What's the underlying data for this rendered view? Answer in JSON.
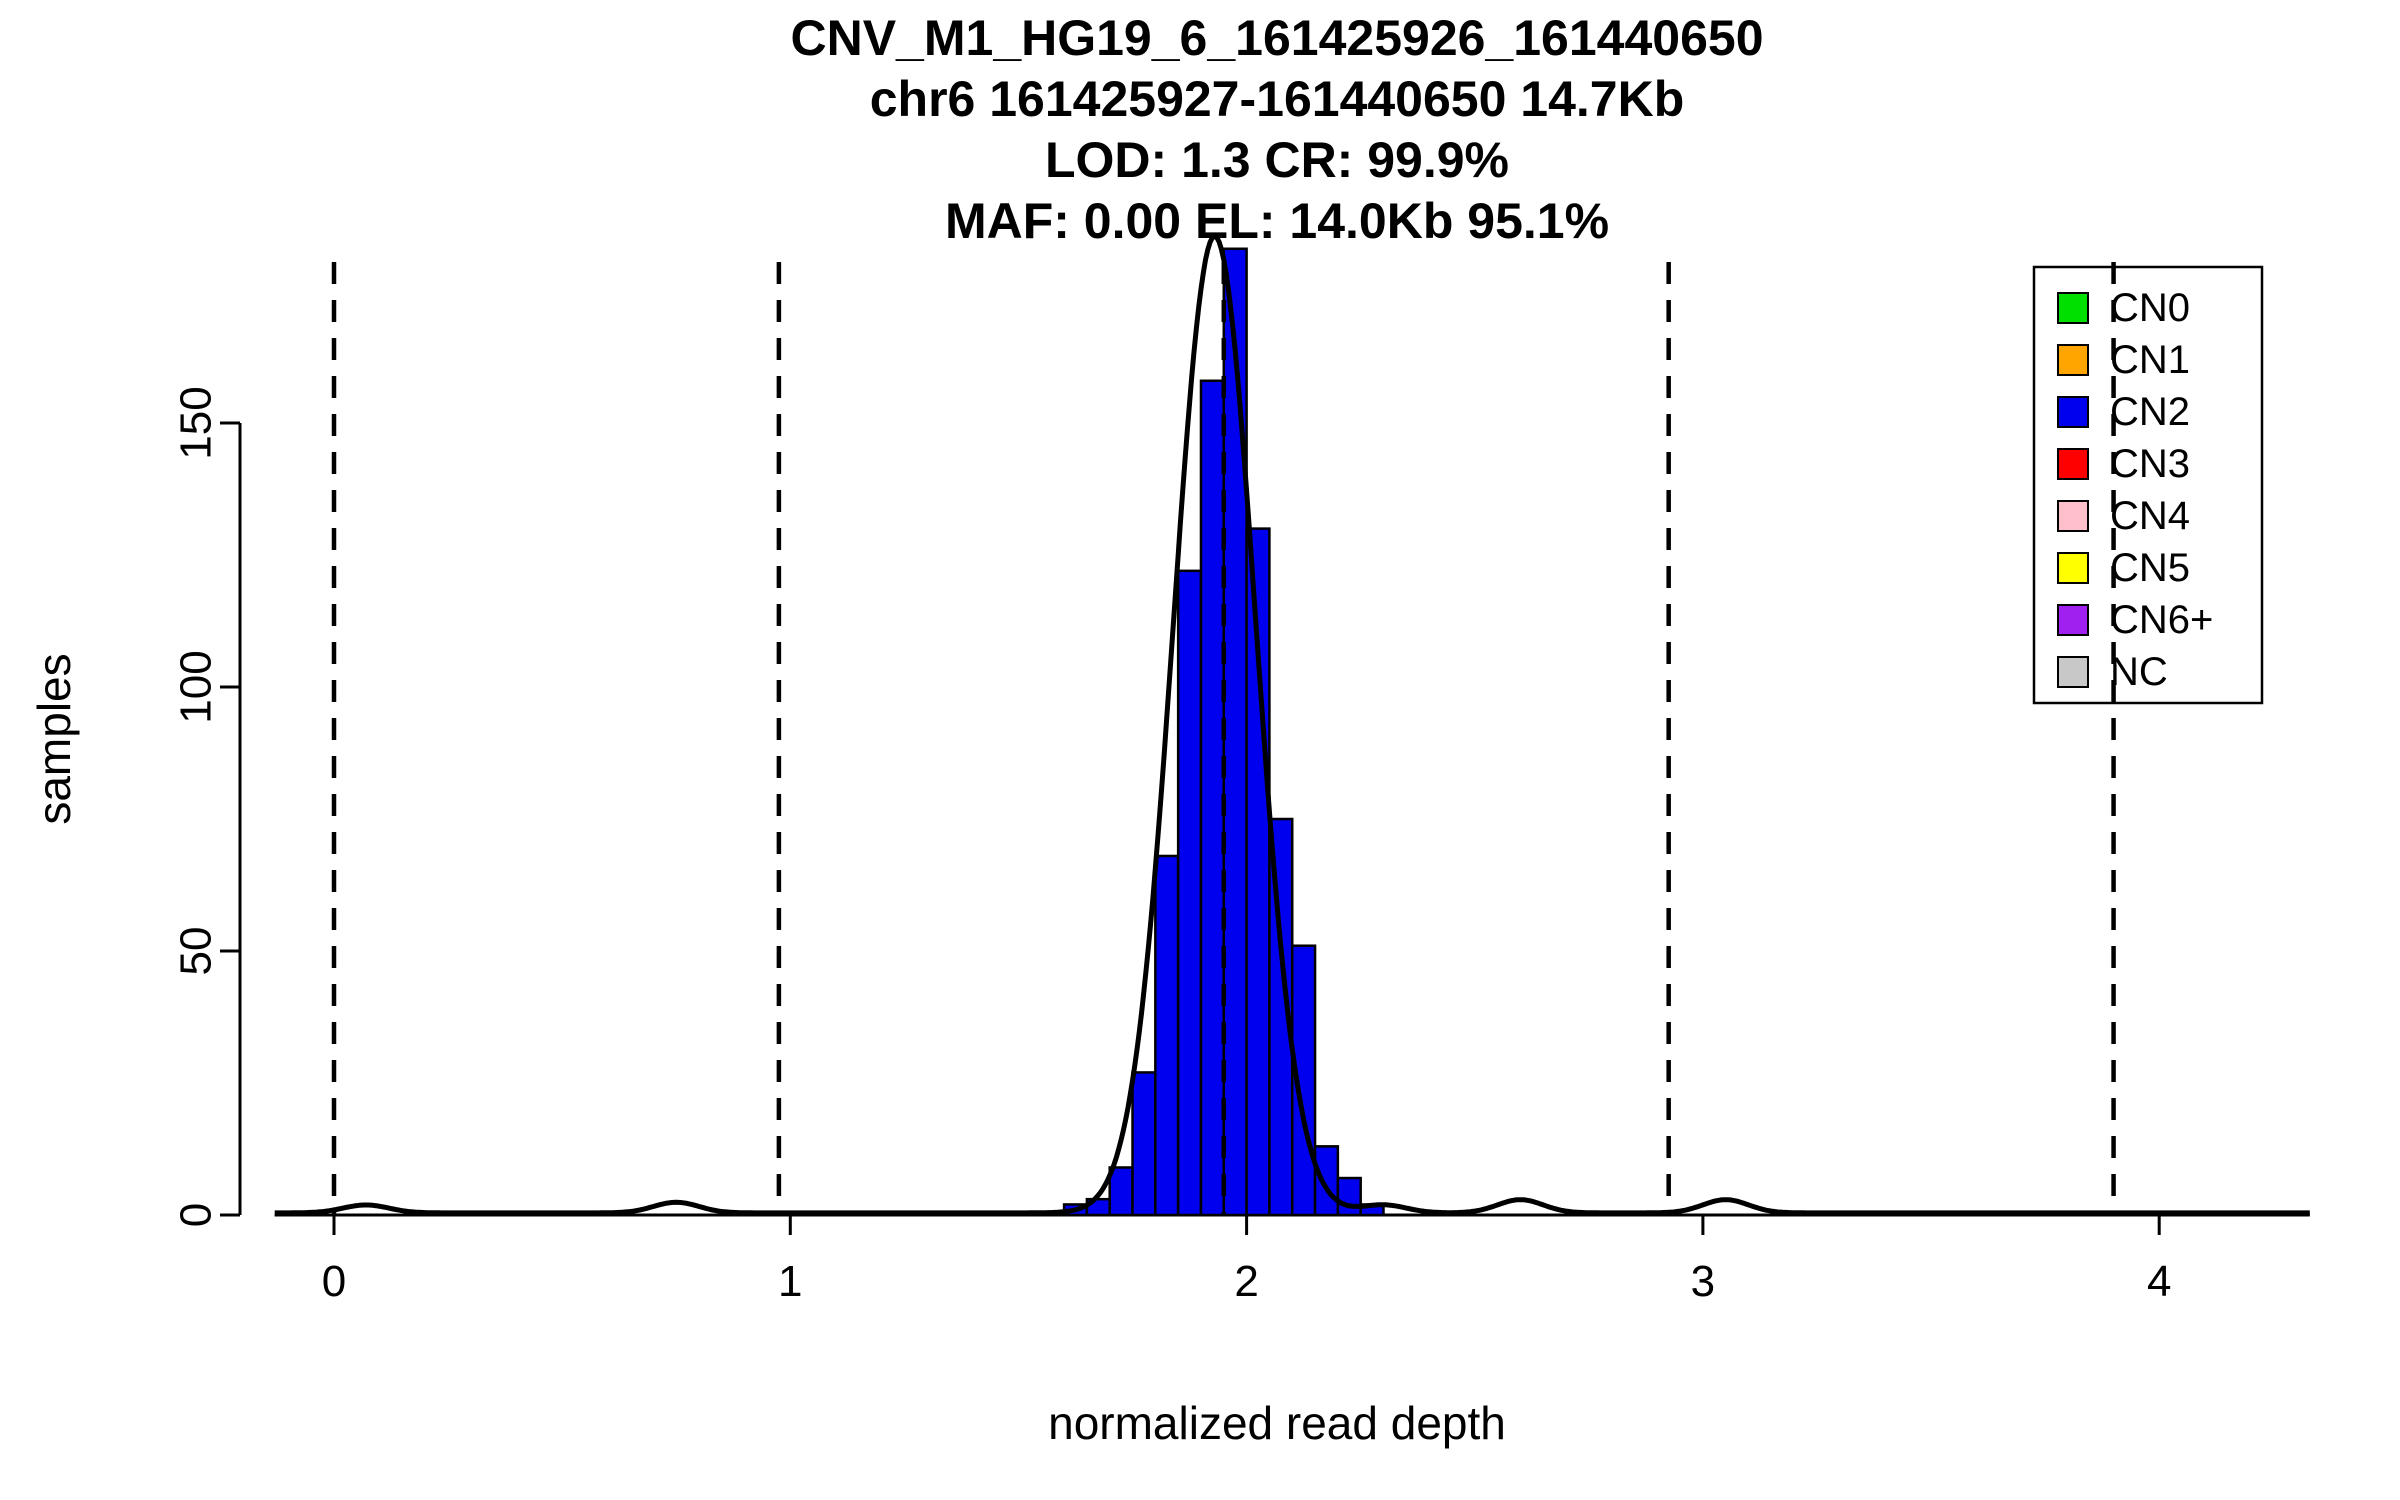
{
  "chart_data": {
    "type": "bar",
    "title": "CNV_M1_HG19_6_161425926_161440650",
    "title_lines": [
      "CNV_M1_HG19_6_161425926_161440650",
      "chr6 161425927-161440650 14.7Kb",
      "LOD: 1.3 CR: 99.9%",
      "MAF: 0.00 EL: 14.0Kb 95.1%"
    ],
    "xlabel": "normalized read depth",
    "ylabel": "samples",
    "x_ticks": [
      0,
      1,
      2,
      3,
      4
    ],
    "y_ticks": [
      0,
      50,
      100,
      150
    ],
    "xlim": [
      -0.13,
      4.33
    ],
    "ylim": [
      0,
      184
    ],
    "grid": false,
    "histogram": {
      "bin_width": 0.05,
      "bin_start": 1.6,
      "counts": [
        2,
        3,
        9,
        27,
        68,
        122,
        158,
        183,
        130,
        75,
        51,
        13,
        7,
        2
      ],
      "fill_color": "#0000EE",
      "edge_color": "#000000"
    },
    "dashed_guides_x": [
      0.0,
      0.975,
      1.95,
      2.925,
      3.9
    ],
    "density_curve": {
      "mean": 1.93,
      "sd": 0.09,
      "peak": 185,
      "minor_bumps": [
        {
          "x": 0.07,
          "height": 1.5
        },
        {
          "x": 0.75,
          "height": 2
        },
        {
          "x": 2.3,
          "height": 1.5
        },
        {
          "x": 2.6,
          "height": 2.5
        },
        {
          "x": 3.05,
          "height": 2.5
        }
      ]
    },
    "legend": {
      "position": "top-right",
      "items": [
        {
          "label": "CN0",
          "color": "#00E000"
        },
        {
          "label": "CN1",
          "color": "#FFA500"
        },
        {
          "label": "CN2",
          "color": "#0000EE"
        },
        {
          "label": "CN3",
          "color": "#FF0000"
        },
        {
          "label": "CN4",
          "color": "#FFC0CB"
        },
        {
          "label": "CN5",
          "color": "#FFFF00"
        },
        {
          "label": "CN6+",
          "color": "#A020F0"
        },
        {
          "label": "NC",
          "color": "#C8C8C8"
        }
      ]
    }
  }
}
